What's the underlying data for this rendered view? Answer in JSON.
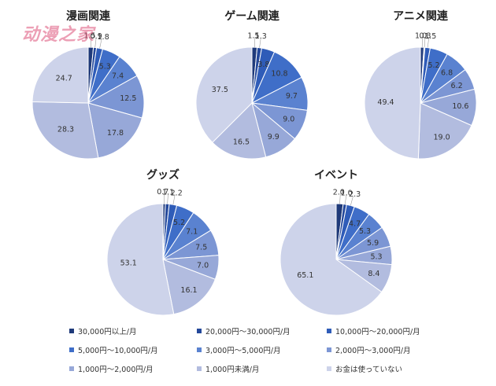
{
  "watermark": "动漫之家",
  "chart_data": {
    "type": "pie",
    "categories": [
      "30,000円以上/月",
      "20,000円～30,000円/月",
      "10,000円～20,000円/月",
      "5,000円～10,000円/月",
      "3,000円～5,000円/月",
      "2,000円～3,000円/月",
      "1,000円～2,000円/月",
      "1,000円未満/月",
      "お金は使っていない"
    ],
    "colors": [
      "#1f3a7a",
      "#24489a",
      "#2f5cb8",
      "#3f6ec8",
      "#5a82d0",
      "#7c96d4",
      "#97a8d8",
      "#b2bcdf",
      "#cdd3ea"
    ],
    "charts": [
      {
        "title": "漫画関連",
        "values": [
          1.5,
          0.9,
          1.8,
          5.3,
          7.4,
          12.5,
          17.8,
          28.3,
          24.7
        ]
      },
      {
        "title": "ゲーム関連",
        "values": [
          1.5,
          1.3,
          3.8,
          10.8,
          9.7,
          9.0,
          9.9,
          16.5,
          37.5
        ]
      },
      {
        "title": "アニメ関連",
        "values": [
          1.0,
          0.3,
          1.5,
          5.2,
          6.8,
          6.2,
          10.6,
          19.0,
          49.4
        ]
      },
      {
        "title": "グッズ",
        "values": [
          0.7,
          1.1,
          2.2,
          5.2,
          7.1,
          7.5,
          7.0,
          16.1,
          53.1
        ]
      },
      {
        "title": "イベント",
        "values": [
          2.0,
          1.0,
          2.3,
          4.7,
          5.3,
          5.9,
          5.3,
          8.4,
          65.1
        ]
      }
    ]
  }
}
